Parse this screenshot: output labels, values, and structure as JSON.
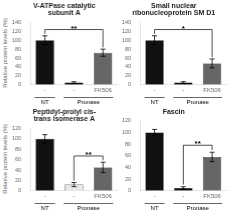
{
  "chart_data": [
    {
      "type": "bar",
      "title": "V-ATPase catalytic\nsubunit A",
      "categories": [
        "-",
        "-",
        "FK506"
      ],
      "groups": [
        "NT",
        "Pronase",
        "Pronase"
      ],
      "values": [
        100,
        5,
        72
      ],
      "errors": [
        10,
        2,
        8
      ],
      "colors": [
        "#111111",
        "#111111",
        "#666666"
      ],
      "significance": {
        "label": "**",
        "from": 0,
        "to": 2
      },
      "ylabel": "Relative protein levels (%)",
      "ylim": [
        0,
        140
      ],
      "yticks": [
        0,
        20,
        40,
        60,
        80,
        100,
        120,
        140
      ],
      "grid": false
    },
    {
      "type": "bar",
      "title": "Small nuclear\nribonucleoprotein SM D1",
      "categories": [
        "-",
        "-",
        "FK506"
      ],
      "groups": [
        "NT",
        "Pronase",
        "Pronase"
      ],
      "values": [
        100,
        5,
        48
      ],
      "errors": [
        10,
        2,
        10
      ],
      "colors": [
        "#111111",
        "#111111",
        "#666666"
      ],
      "significance": {
        "label": "*",
        "from": 0,
        "to": 2
      },
      "ylim": [
        0,
        140
      ],
      "yticks": [
        0,
        20,
        40,
        60,
        80,
        100,
        120,
        140
      ],
      "grid": false
    },
    {
      "type": "bar",
      "title": "Peptidyl-prolyl cis-\ntrans isomerase A",
      "categories": [
        "-",
        "-",
        "FK506"
      ],
      "groups": [
        "NT",
        "Pronase",
        "Pronase"
      ],
      "values": [
        100,
        12,
        45
      ],
      "errors": [
        8,
        4,
        10
      ],
      "colors": [
        "#111111",
        "#e8e8e8",
        "#666666"
      ],
      "significance": {
        "label": "**",
        "from": 1,
        "to": 2
      },
      "ylabel": "Relative protein levels (%)",
      "ylim": [
        0,
        120
      ],
      "yticks": [
        0,
        20,
        40,
        60,
        80,
        100,
        120
      ],
      "grid": false
    },
    {
      "type": "bar",
      "title": "Fascin",
      "categories": [
        "-",
        "-",
        "FK506"
      ],
      "groups": [
        "NT",
        "Pronase",
        "Pronase"
      ],
      "values": [
        100,
        5,
        58
      ],
      "errors": [
        5,
        2,
        8
      ],
      "colors": [
        "#111111",
        "#111111",
        "#666666"
      ],
      "significance": {
        "label": "**",
        "from": 1,
        "to": 2
      },
      "ylim": [
        0,
        120
      ],
      "yticks": [
        0,
        20,
        40,
        60,
        80,
        100,
        120
      ],
      "grid": false
    }
  ]
}
